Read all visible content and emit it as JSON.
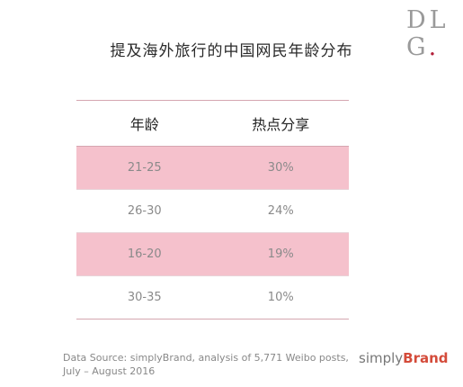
{
  "logo": {
    "line1": "DL",
    "line2": "G",
    "dot": "."
  },
  "title": "提及海外旅行的中国网民年龄分布",
  "chart_data": {
    "type": "table",
    "title": "提及海外旅行的中国网民年龄分布",
    "columns": [
      "年龄",
      "热点分享"
    ],
    "rows": [
      {
        "age": "21-25",
        "share": "30%"
      },
      {
        "age": "26-30",
        "share": "24%"
      },
      {
        "age": "16-20",
        "share": "19%"
      },
      {
        "age": "30-35",
        "share": "10%"
      }
    ]
  },
  "footer": {
    "source_line1": "Data Source: simplyBrand, analysis of 5,771 Weibo posts,",
    "source_line2": "July – August 2016",
    "brand_simply": "simply",
    "brand_bold": "Brand"
  },
  "colors": {
    "row_highlight": "#f5c1cc",
    "accent_red": "#d44b3a"
  }
}
